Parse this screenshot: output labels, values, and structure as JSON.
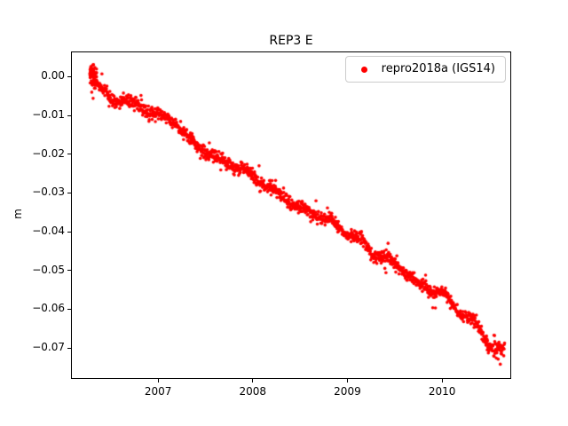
{
  "chart_data": {
    "type": "scatter",
    "title": "REP3 E",
    "xlabel": "",
    "ylabel": "m",
    "xlim": [
      2006.08,
      2010.73
    ],
    "ylim": [
      -0.078,
      0.0065
    ],
    "grid": false,
    "legend_position": "upper right",
    "xticks": [
      {
        "v": 2007,
        "label": "2007"
      },
      {
        "v": 2008,
        "label": "2008"
      },
      {
        "v": 2009,
        "label": "2009"
      },
      {
        "v": 2010,
        "label": "2010"
      }
    ],
    "yticks": [
      {
        "v": 0.0,
        "label": "0.00"
      },
      {
        "v": -0.01,
        "label": "−0.01"
      },
      {
        "v": -0.02,
        "label": "−0.02"
      },
      {
        "v": -0.03,
        "label": "−0.03"
      },
      {
        "v": -0.04,
        "label": "−0.04"
      },
      {
        "v": -0.05,
        "label": "−0.05"
      },
      {
        "v": -0.06,
        "label": "−0.06"
      },
      {
        "v": -0.07,
        "label": "−0.07"
      }
    ],
    "series": [
      {
        "name": "repro2018a (IGS14)",
        "color": "#ff0000",
        "marker": "dot",
        "marker_radius_px": 1.8,
        "x_start": 2006.28,
        "x_end": 2010.66,
        "points": 1560,
        "noise_std": 0.0008,
        "outlier_fraction": 0.05,
        "outlier_std": 0.002,
        "wobble_amp": 0.0006,
        "trend_anchors": [
          [
            2006.28,
            0.0005
          ],
          [
            2006.4,
            -0.003
          ],
          [
            2006.52,
            -0.0065
          ],
          [
            2006.62,
            -0.0055
          ],
          [
            2006.75,
            -0.0075
          ],
          [
            2006.9,
            -0.0085
          ],
          [
            2007.05,
            -0.0105
          ],
          [
            2007.18,
            -0.0115
          ],
          [
            2007.32,
            -0.016
          ],
          [
            2007.45,
            -0.0185
          ],
          [
            2007.6,
            -0.021
          ],
          [
            2007.75,
            -0.0225
          ],
          [
            2007.9,
            -0.024
          ],
          [
            2008.05,
            -0.0265
          ],
          [
            2008.2,
            -0.029
          ],
          [
            2008.35,
            -0.0315
          ],
          [
            2008.5,
            -0.034
          ],
          [
            2008.65,
            -0.0355
          ],
          [
            2008.8,
            -0.037
          ],
          [
            2008.95,
            -0.0395
          ],
          [
            2009.05,
            -0.041
          ],
          [
            2009.2,
            -0.0435
          ],
          [
            2009.3,
            -0.046
          ],
          [
            2009.45,
            -0.0475
          ],
          [
            2009.6,
            -0.05
          ],
          [
            2009.75,
            -0.0535
          ],
          [
            2009.9,
            -0.055
          ],
          [
            2010.0,
            -0.056
          ],
          [
            2010.1,
            -0.0585
          ],
          [
            2010.2,
            -0.061
          ],
          [
            2010.3,
            -0.0625
          ],
          [
            2010.4,
            -0.0655
          ],
          [
            2010.5,
            -0.069
          ],
          [
            2010.58,
            -0.0705
          ],
          [
            2010.66,
            -0.071
          ]
        ],
        "start_cluster": {
          "x0": 2006.28,
          "x1": 2006.35,
          "count": 60,
          "std": 0.0018,
          "center": 0.0
        },
        "outliers": [
          [
            2010.615,
            -0.0742
          ],
          [
            2010.555,
            -0.0668
          ],
          [
            2006.31,
            0.003
          ]
        ]
      }
    ]
  }
}
